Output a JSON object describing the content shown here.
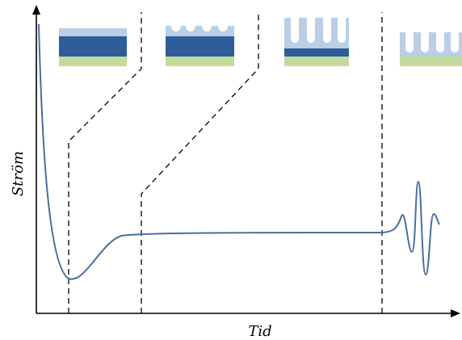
{
  "axes": {
    "y_label": "Ström",
    "x_label": "Tid"
  }
}
